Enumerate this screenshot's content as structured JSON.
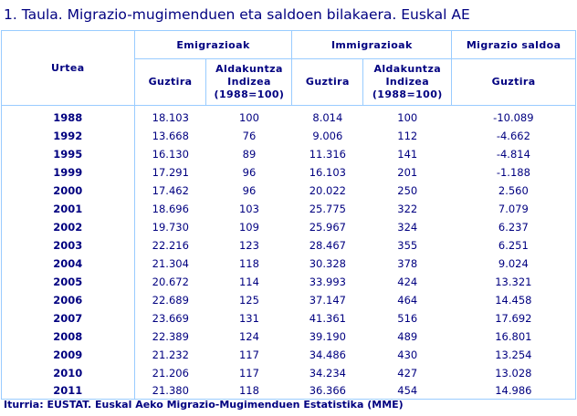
{
  "title": "1. Taula. Migrazio-mugimenduen eta saldoen bilakaera. Euskal AE",
  "headers": {
    "year": "Urtea",
    "emigration": "Emigrazioak",
    "immigration": "Immigrazioak",
    "balance": "Migrazio saldoa",
    "total": "Guztira",
    "index_line1": "Aldakuntza",
    "index_line2": "Indizea",
    "index_line3": "(1988=100)"
  },
  "rows": [
    [
      "1988",
      "18.103",
      "100",
      "8.014",
      "100",
      "-10.089"
    ],
    [
      "1992",
      "13.668",
      "76",
      "9.006",
      "112",
      "-4.662"
    ],
    [
      "1995",
      "16.130",
      "89",
      "11.316",
      "141",
      "-4.814"
    ],
    [
      "1999",
      "17.291",
      "96",
      "16.103",
      "201",
      "-1.188"
    ],
    [
      "2000",
      "17.462",
      "96",
      "20.022",
      "250",
      "2.560"
    ],
    [
      "2001",
      "18.696",
      "103",
      "25.775",
      "322",
      "7.079"
    ],
    [
      "2002",
      "19.730",
      "109",
      "25.967",
      "324",
      "6.237"
    ],
    [
      "2003",
      "22.216",
      "123",
      "28.467",
      "355",
      "6.251"
    ],
    [
      "2004",
      "21.304",
      "118",
      "30.328",
      "378",
      "9.024"
    ],
    [
      "2005",
      "20.672",
      "114",
      "33.993",
      "424",
      "13.321"
    ],
    [
      "2006",
      "22.689",
      "125",
      "37.147",
      "464",
      "14.458"
    ],
    [
      "2007",
      "23.669",
      "131",
      "41.361",
      "516",
      "17.692"
    ],
    [
      "2008",
      "22.389",
      "124",
      "39.190",
      "489",
      "16.801"
    ],
    [
      "2009",
      "21.232",
      "117",
      "34.486",
      "430",
      "13.254"
    ],
    [
      "2010",
      "21.206",
      "117",
      "34.234",
      "427",
      "13.028"
    ],
    [
      "2011",
      "21.380",
      "118",
      "36.366",
      "454",
      "14.986"
    ]
  ],
  "source": "Iturria: EUSTAT. Euskal Aeko Migrazio-Mugimenduen Estatistika (MME)",
  "colors": {
    "text": "#000080",
    "border": "#99ccff"
  }
}
